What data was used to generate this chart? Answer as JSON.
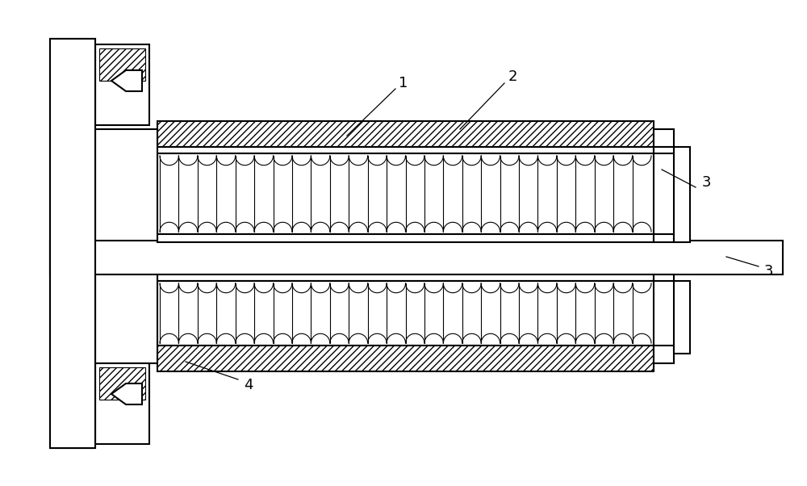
{
  "fig_width": 10.0,
  "fig_height": 6.02,
  "dpi": 100,
  "bg_color": "#ffffff",
  "line_color": "#000000",
  "label_fontsize": 13,
  "line_width": 1.5,
  "thin_line": 0.8
}
